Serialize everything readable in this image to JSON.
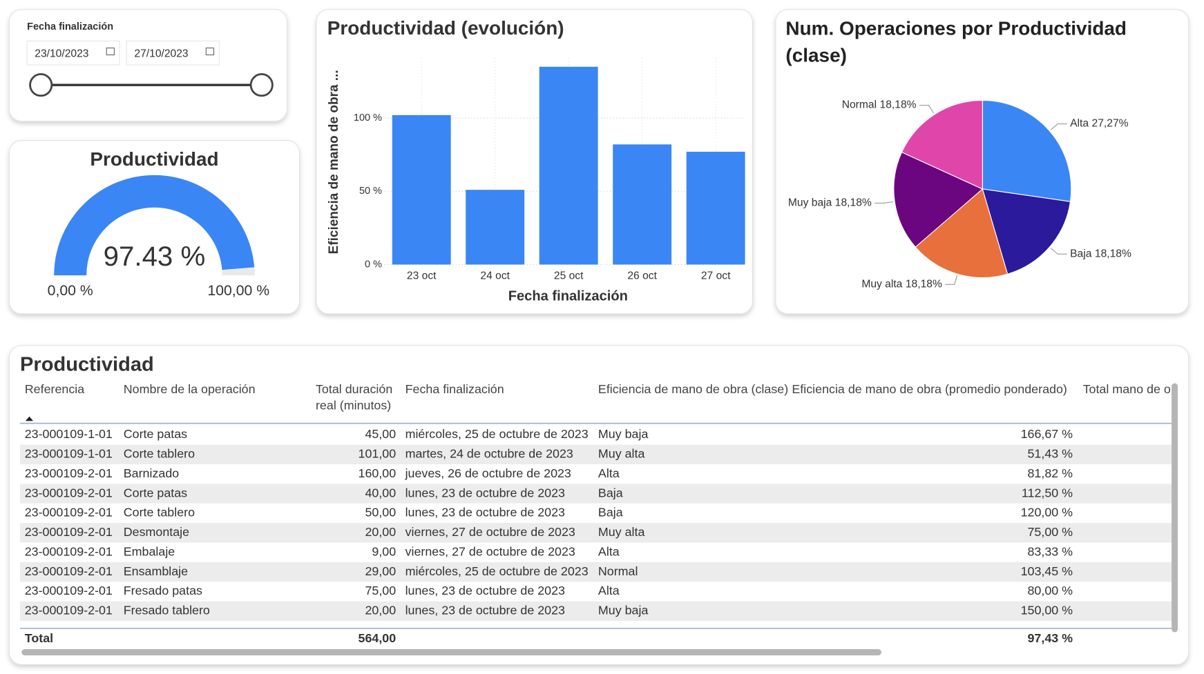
{
  "slicer": {
    "title": "Fecha finalización",
    "start": "23/10/2023",
    "end": "27/10/2023"
  },
  "chart_data": [
    {
      "type": "gauge",
      "title": "Productividad",
      "value": 97.43,
      "value_label": "97.43 %",
      "min": {
        "value": 0,
        "label": "0,00 %"
      },
      "max": {
        "value": 100,
        "label": "100,00 %"
      },
      "color": "#3b86f5"
    },
    {
      "type": "bar",
      "title": "Productividad (evolución)",
      "y_label": "Eficiencia de mano de obra ...",
      "x_label": "Fecha finalización",
      "categories": [
        "23 oct",
        "24 oct",
        "25 oct",
        "26 oct",
        "27 oct"
      ],
      "values": [
        102,
        51,
        135,
        82,
        77
      ],
      "color": "#3b86f5",
      "ylim": [
        0,
        141
      ],
      "yticks": [
        {
          "value": 0,
          "label": "0 %"
        },
        {
          "value": 50,
          "label": "50 %"
        },
        {
          "value": 100,
          "label": "100 %"
        }
      ],
      "grid": true
    },
    {
      "type": "pie",
      "title": "Num. Operaciones por Productividad (clase)",
      "categories": [
        "Alta",
        "Baja",
        "Muy alta",
        "Muy baja",
        "Normal"
      ],
      "values": [
        27.27,
        18.18,
        18.18,
        18.18,
        18.18
      ],
      "value_labels": [
        "27,27%",
        "18,18%",
        "18,18%",
        "18,18%",
        "18,18%"
      ],
      "colors": [
        "#3b86f5",
        "#2b1a9c",
        "#e7703c",
        "#6b0680",
        "#e045a9"
      ]
    }
  ],
  "table": {
    "title": "Productividad",
    "columns": [
      "Referencia",
      "Nombre de la operación",
      "Total duración real (minutos)",
      "Fecha finalización",
      "Eficiencia de mano de obra (clase)",
      "Eficiencia de mano de obra (promedio ponderado)",
      "Total mano de o"
    ],
    "rows": [
      [
        "23-000109-1-01",
        "Corte patas",
        "45,00",
        "miércoles, 25 de octubre de 2023",
        "Muy baja",
        "166,67 %"
      ],
      [
        "23-000109-1-01",
        "Corte tablero",
        "101,00",
        "martes, 24 de octubre de 2023",
        "Muy alta",
        "51,43 %"
      ],
      [
        "23-000109-2-01",
        "Barnizado",
        "160,00",
        "jueves, 26 de octubre de 2023",
        "Alta",
        "81,82 %"
      ],
      [
        "23-000109-2-01",
        "Corte patas",
        "40,00",
        "lunes, 23 de octubre de 2023",
        "Baja",
        "112,50 %"
      ],
      [
        "23-000109-2-01",
        "Corte tablero",
        "50,00",
        "lunes, 23 de octubre de 2023",
        "Baja",
        "120,00 %"
      ],
      [
        "23-000109-2-01",
        "Desmontaje",
        "20,00",
        "viernes, 27 de octubre de 2023",
        "Muy alta",
        "75,00 %"
      ],
      [
        "23-000109-2-01",
        "Embalaje",
        "9,00",
        "viernes, 27 de octubre de 2023",
        "Alta",
        "83,33 %"
      ],
      [
        "23-000109-2-01",
        "Ensamblaje",
        "29,00",
        "miércoles, 25 de octubre de 2023",
        "Normal",
        "103,45 %"
      ],
      [
        "23-000109-2-01",
        "Fresado patas",
        "75,00",
        "lunes, 23 de octubre de 2023",
        "Alta",
        "80,00 %"
      ],
      [
        "23-000109-2-01",
        "Fresado tablero",
        "20,00",
        "lunes, 23 de octubre de 2023",
        "Muy baja",
        "150,00 %"
      ]
    ],
    "total": {
      "label": "Total",
      "duration": "564,00",
      "efficiency": "97,43 %"
    }
  }
}
